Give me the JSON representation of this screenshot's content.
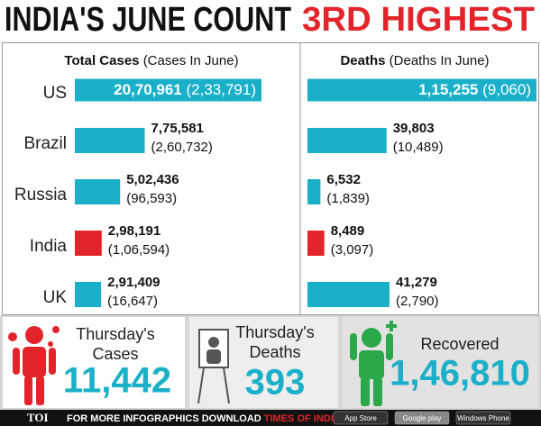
{
  "title": "INDIA'S JUNE COUNT",
  "title_highlight": "3RD HIGHEST",
  "chart_data": [
    {
      "type": "bar",
      "orientation": "horizontal",
      "title": "Total Cases",
      "subtitle": "(Cases In June)",
      "categories": [
        "US",
        "Brazil",
        "Russia",
        "India",
        "UK"
      ],
      "values": [
        2070961,
        775581,
        502436,
        298191,
        291409
      ],
      "value_labels": [
        "20,70,961",
        "7,75,581",
        "5,02,436",
        "2,98,191",
        "2,91,409"
      ],
      "june_values": [
        233791,
        260732,
        96593,
        106594,
        16647
      ],
      "june_value_labels": [
        "(2,33,791)",
        "(2,60,732)",
        "(96,593)",
        "(1,06,594)",
        "(16,647)"
      ],
      "colors": [
        "#1bb0c9",
        "#1bb0c9",
        "#1bb0c9",
        "#e3242b",
        "#1bb0c9"
      ]
    },
    {
      "type": "bar",
      "orientation": "horizontal",
      "title": "Deaths",
      "subtitle": "(Deaths In June)",
      "values": [
        115255,
        39803,
        6532,
        8489,
        41279
      ],
      "value_labels": [
        "1,15,255",
        "39,803",
        "6,532",
        "8,489",
        "41,279"
      ],
      "june_values": [
        9060,
        10489,
        1839,
        3097,
        2790
      ],
      "june_value_labels": [
        "(9,060)",
        "(10,489)",
        "(1,839)",
        "(3,097)",
        "(2,790)"
      ],
      "colors": [
        "#1bb0c9",
        "#1bb0c9",
        "#1bb0c9",
        "#e3242b",
        "#1bb0c9"
      ]
    }
  ],
  "stats": [
    {
      "label_lines": [
        "Thursday's",
        "Cases"
      ],
      "value": "11,442"
    },
    {
      "label_lines": [
        "Thursday's",
        "Deaths"
      ],
      "value": "393"
    },
    {
      "label_lines": [
        "Recovered"
      ],
      "value": "1,46,810"
    }
  ],
  "footer": {
    "brand": "TOI",
    "text": "FOR MORE INFOGRAPHICS DOWNLOAD",
    "highlight": "TIMES OF INDIA APP",
    "badges": [
      "App Store",
      "Google play",
      "Windows Phone"
    ]
  }
}
